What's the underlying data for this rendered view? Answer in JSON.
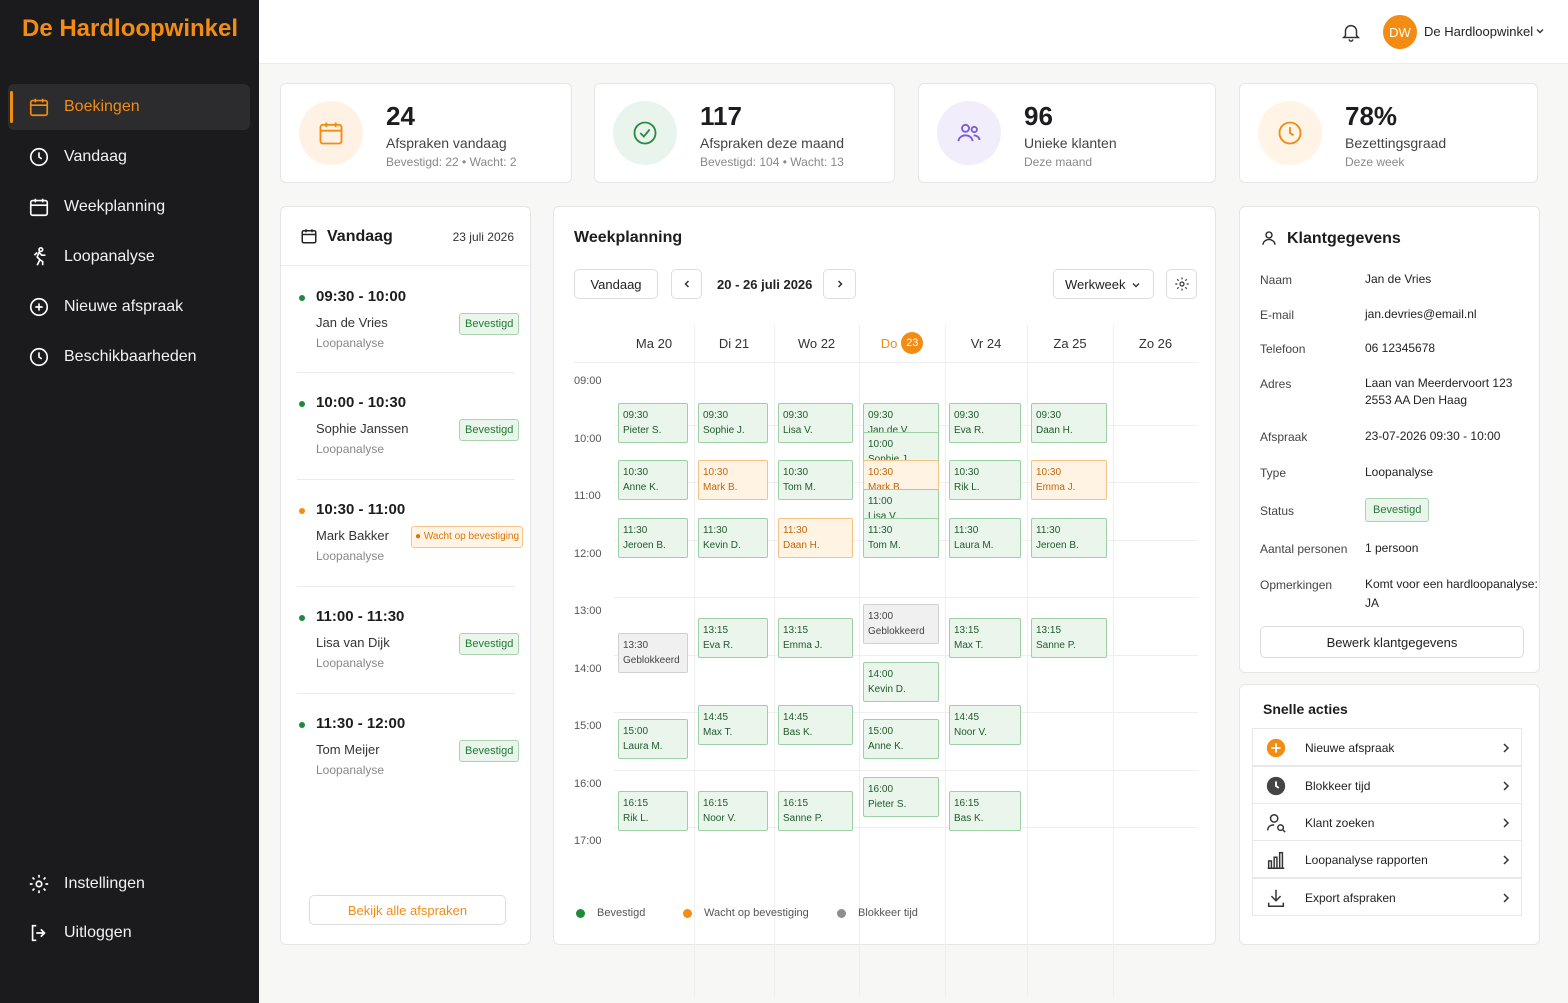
{
  "brand": "De Hardloopwinkel",
  "nav": {
    "items": [
      {
        "label": "Boekingen",
        "icon": "calendar-icon",
        "active": true
      },
      {
        "label": "Vandaag",
        "icon": "clock-icon"
      },
      {
        "label": "Weekplanning",
        "icon": "calendar-icon"
      },
      {
        "label": "Loopanalyse",
        "icon": "runner-icon"
      },
      {
        "label": "Nieuwe afspraak",
        "icon": "plus-circle-icon"
      },
      {
        "label": "Beschikbaarheden",
        "icon": "clock-icon"
      }
    ],
    "bottom": [
      {
        "label": "Instellingen",
        "icon": "gear-icon"
      },
      {
        "label": "Uitloggen",
        "icon": "logout-icon"
      }
    ]
  },
  "header": {
    "avatar_initials": "DW",
    "user_name": "De Hardloopwinkel"
  },
  "stats": [
    {
      "value": "24",
      "label": "Afspraken vandaag",
      "sub": "Bevestigd: 22 • Wacht: 2",
      "icon": "calendar-icon",
      "color": "#f28c12",
      "bg": "#fff1e4"
    },
    {
      "value": "117",
      "label": "Afspraken deze maand",
      "sub": "Bevestigd: 104 • Wacht: 13",
      "icon": "check-circle-icon",
      "color": "#2e8b43",
      "bg": "#e9f5ec"
    },
    {
      "value": "96",
      "label": "Unieke klanten",
      "sub": "Deze maand",
      "icon": "users-icon",
      "color": "#7b5cd6",
      "bg": "#f1edfb"
    },
    {
      "value": "78%",
      "label": "Bezettingsgraad",
      "sub": "Deze week",
      "icon": "clock-icon",
      "color": "#f28c12",
      "bg": "#fff4e6"
    }
  ],
  "today": {
    "title": "Vandaag",
    "date": "23 juli 2026",
    "view_all": "Bekijk alle afspraken",
    "items": [
      {
        "time": "09:30 - 10:00",
        "name": "Jan de Vries",
        "type": "Loopanalyse",
        "status": "Bevestigd",
        "waiting": false
      },
      {
        "time": "10:00 - 10:30",
        "name": "Sophie Janssen",
        "type": "Loopanalyse",
        "status": "Bevestigd",
        "waiting": false
      },
      {
        "time": "10:30 - 11:00",
        "name": "Mark Bakker",
        "type": "Loopanalyse",
        "status": "● Wacht op bevestiging",
        "waiting": true
      },
      {
        "time": "11:00 - 11:30",
        "name": "Lisa van Dijk",
        "type": "Loopanalyse",
        "status": "Bevestigd",
        "waiting": false
      },
      {
        "time": "11:30 - 12:00",
        "name": "Tom Meijer",
        "type": "Loopanalyse",
        "status": "Bevestigd",
        "waiting": false
      }
    ]
  },
  "week": {
    "title": "Weekplanning",
    "today_btn": "Vandaag",
    "range": "20 - 26 juli 2026",
    "view": "Werkweek",
    "days": [
      {
        "label": "Ma 20"
      },
      {
        "label": "Di 21"
      },
      {
        "label": "Wo 22"
      },
      {
        "label": "Do",
        "num": "23",
        "today": true
      },
      {
        "label": "Vr 24"
      },
      {
        "label": "Za 25"
      },
      {
        "label": "Zo 26"
      }
    ],
    "hours": [
      "09:00",
      "10:00",
      "11:00",
      "12:00",
      "13:00",
      "14:00",
      "15:00",
      "16:00",
      "17:00"
    ],
    "events": [
      {
        "day": 0,
        "time": "09:30",
        "name": "Pieter S.",
        "status": "bevestigd"
      },
      {
        "day": 0,
        "time": "10:30",
        "name": "Anne K.",
        "status": "bevestigd"
      },
      {
        "day": 0,
        "time": "11:30",
        "name": "Jeroen B.",
        "status": "bevestigd"
      },
      {
        "day": 0,
        "time": "13:30",
        "name": "Geblokkeerd",
        "status": "blok"
      },
      {
        "day": 0,
        "time": "15:00",
        "name": "Laura M.",
        "status": "bevestigd"
      },
      {
        "day": 0,
        "time": "16:15",
        "name": "Rik L.",
        "status": "bevestigd"
      },
      {
        "day": 1,
        "time": "09:30",
        "name": "Sophie J.",
        "status": "bevestigd"
      },
      {
        "day": 1,
        "time": "10:30",
        "name": "Mark B.",
        "status": "wacht"
      },
      {
        "day": 1,
        "time": "11:30",
        "name": "Kevin D.",
        "status": "bevestigd"
      },
      {
        "day": 1,
        "time": "13:15",
        "name": "Eva R.",
        "status": "bevestigd"
      },
      {
        "day": 1,
        "time": "14:45",
        "name": "Max T.",
        "status": "bevestigd"
      },
      {
        "day": 1,
        "time": "16:15",
        "name": "Noor V.",
        "status": "bevestigd"
      },
      {
        "day": 2,
        "time": "09:30",
        "name": "Lisa V.",
        "status": "bevestigd"
      },
      {
        "day": 2,
        "time": "10:30",
        "name": "Tom M.",
        "status": "bevestigd"
      },
      {
        "day": 2,
        "time": "11:30",
        "name": "Daan H.",
        "status": "wacht"
      },
      {
        "day": 2,
        "time": "13:15",
        "name": "Emma J.",
        "status": "bevestigd"
      },
      {
        "day": 2,
        "time": "14:45",
        "name": "Bas K.",
        "status": "bevestigd"
      },
      {
        "day": 2,
        "time": "16:15",
        "name": "Sanne P.",
        "status": "bevestigd"
      },
      {
        "day": 3,
        "time": "09:30",
        "name": "Jan de V.",
        "status": "bevestigd"
      },
      {
        "day": 3,
        "time": "10:00",
        "name": "Sophie J.",
        "status": "bevestigd"
      },
      {
        "day": 3,
        "time": "10:30",
        "name": "Mark B.",
        "status": "wacht"
      },
      {
        "day": 3,
        "time": "11:00",
        "name": "Lisa V.",
        "status": "bevestigd"
      },
      {
        "day": 3,
        "time": "11:30",
        "name": "Tom M.",
        "status": "bevestigd"
      },
      {
        "day": 3,
        "time": "13:00",
        "name": "Geblokkeerd",
        "status": "blok"
      },
      {
        "day": 3,
        "time": "14:00",
        "name": "Kevin D.",
        "status": "bevestigd"
      },
      {
        "day": 3,
        "time": "15:00",
        "name": "Anne K.",
        "status": "bevestigd"
      },
      {
        "day": 3,
        "time": "16:00",
        "name": "Pieter S.",
        "status": "bevestigd"
      },
      {
        "day": 4,
        "time": "09:30",
        "name": "Eva R.",
        "status": "bevestigd"
      },
      {
        "day": 4,
        "time": "10:30",
        "name": "Rik L.",
        "status": "bevestigd"
      },
      {
        "day": 4,
        "time": "11:30",
        "name": "Laura M.",
        "status": "bevestigd"
      },
      {
        "day": 4,
        "time": "13:15",
        "name": "Max T.",
        "status": "bevestigd"
      },
      {
        "day": 4,
        "time": "14:45",
        "name": "Noor V.",
        "status": "bevestigd"
      },
      {
        "day": 4,
        "time": "16:15",
        "name": "Bas K.",
        "status": "bevestigd"
      },
      {
        "day": 5,
        "time": "09:30",
        "name": "Daan H.",
        "status": "bevestigd"
      },
      {
        "day": 5,
        "time": "10:30",
        "name": "Emma J.",
        "status": "wacht"
      },
      {
        "day": 5,
        "time": "11:30",
        "name": "Jeroen B.",
        "status": "bevestigd"
      },
      {
        "day": 5,
        "time": "13:15",
        "name": "Sanne P.",
        "status": "bevestigd"
      }
    ],
    "legend": [
      {
        "label": "Bevestigd",
        "color": "#1f8a3a"
      },
      {
        "label": "Wacht op bevestiging",
        "color": "#f28c12"
      },
      {
        "label": "Blokkeer tijd",
        "color": "#8e8e8e"
      }
    ]
  },
  "klant": {
    "title": "Klantgegevens",
    "edit_btn": "Bewerk klantgegevens",
    "rows": [
      {
        "label": "Naam",
        "value": "Jan de Vries"
      },
      {
        "label": "E-mail",
        "value": "jan.devries@email.nl"
      },
      {
        "label": "Telefoon",
        "value": "06 12345678"
      },
      {
        "label": "Adres",
        "value": "Laan van Meerdervoort 123",
        "value2": "2553 AA Den Haag"
      },
      {
        "label": "Afspraak",
        "value": "23-07-2026 09:30 - 10:00"
      },
      {
        "label": "Type",
        "value": "Loopanalyse"
      },
      {
        "label": "Status",
        "value": "Bevestigd",
        "badge": true
      },
      {
        "label": "Aantal personen",
        "value": "1 persoon"
      },
      {
        "label": "Opmerkingen",
        "value": "Komt voor een hardloopanalyse:",
        "value2": "JA"
      }
    ]
  },
  "quick": {
    "title": "Snelle acties",
    "items": [
      {
        "label": "Nieuwe afspraak",
        "icon": "plus-circle-icon"
      },
      {
        "label": "Blokkeer tijd",
        "icon": "clock-icon"
      },
      {
        "label": "Klant zoeken",
        "icon": "user-search-icon"
      },
      {
        "label": "Loopanalyse rapporten",
        "icon": "bar-chart-icon"
      },
      {
        "label": "Export afspraken",
        "icon": "download-icon"
      }
    ]
  }
}
